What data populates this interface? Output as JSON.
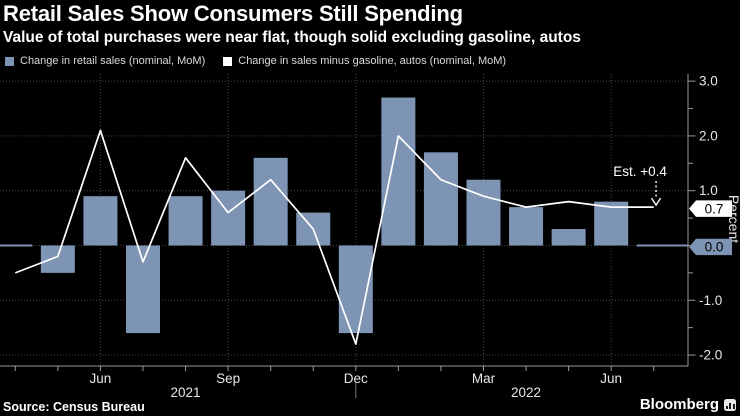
{
  "header": {
    "title": "Retail Sales Show Consumers Still Spending",
    "subtitle": "Value of total purchases were near flat, though solid excluding gasoline, autos"
  },
  "legend": [
    {
      "label": "Change in retail sales (nominal, MoM)",
      "color": "#7e94b5"
    },
    {
      "label": "Change in sales minus gasoline, autos (nominal, MoM)",
      "color": "#ffffff"
    }
  ],
  "footer": {
    "source": "Source: Census Bureau",
    "brand": "Bloomberg"
  },
  "chart_data": {
    "type": "combo (bar + line)",
    "x": [
      "Apr 2021",
      "May 2021",
      "Jun 2021",
      "Jul 2021",
      "Aug 2021",
      "Sep 2021",
      "Oct 2021",
      "Nov 2021",
      "Dec 2021",
      "Jan 2022",
      "Feb 2022",
      "Mar 2022",
      "Apr 2022",
      "May 2022",
      "Jun 2022",
      "Jul 2022"
    ],
    "series": [
      {
        "name": "Change in retail sales (nominal, MoM)",
        "type": "bar",
        "color": "#7e94b5",
        "values": [
          0.0,
          -0.5,
          0.9,
          -1.6,
          0.9,
          1.0,
          1.6,
          0.6,
          -1.6,
          2.7,
          1.7,
          1.2,
          0.7,
          0.3,
          0.8,
          0.0
        ]
      },
      {
        "name": "Change in sales minus gasoline, autos (nominal, MoM)",
        "type": "line",
        "color": "#ffffff",
        "values": [
          -0.5,
          -0.2,
          2.1,
          -0.3,
          1.6,
          0.6,
          1.2,
          0.3,
          -1.8,
          2.0,
          1.2,
          0.9,
          0.7,
          0.8,
          0.7,
          0.7
        ]
      }
    ],
    "ylabel": "Percent",
    "ylim": [
      -2.2,
      3.13
    ],
    "grid": true,
    "legend_position": "top",
    "yticks": [
      {
        "value": 3.0,
        "label": "3.0"
      },
      {
        "value": 2.0,
        "label": "2.0"
      },
      {
        "value": 1.0,
        "label": "1.0"
      },
      {
        "value": 0.0,
        "label": "0.0"
      },
      {
        "value": -1.0,
        "label": "-1.0"
      },
      {
        "value": -2.0,
        "label": "-2.0"
      }
    ],
    "xticks": [
      {
        "index": 2,
        "label": "Jun"
      },
      {
        "index": 5,
        "label": "Sep"
      },
      {
        "index": 8,
        "label": "Dec"
      },
      {
        "index": 11,
        "label": "Mar"
      },
      {
        "index": 14,
        "label": "Jun"
      }
    ],
    "year_labels": [
      {
        "label": "2021",
        "x_index": 4
      },
      {
        "label": "2022",
        "x_index": 12
      }
    ],
    "year_divider_index": 8,
    "annotation": {
      "text": "Est. +0.4"
    },
    "end_badges": [
      {
        "label": "0.7",
        "value": 0.7,
        "bg": "#ffffff",
        "fg": "#000000"
      },
      {
        "label": "0.0",
        "value": 0.0,
        "bg": "#7e94b5",
        "fg": "#000000"
      }
    ],
    "colors": {
      "background": "#000000",
      "gridline": "#474747",
      "axis": "#999999",
      "tick_text": "#e6e6e6"
    }
  }
}
